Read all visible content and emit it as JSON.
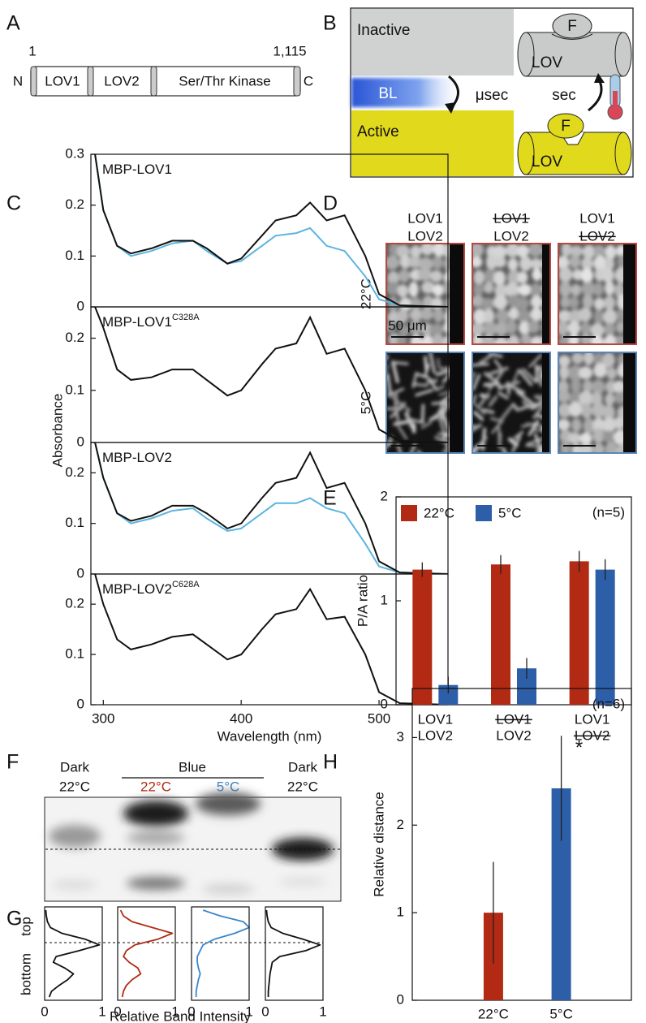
{
  "panel_labels": [
    "A",
    "B",
    "C",
    "D",
    "E",
    "F",
    "G",
    "H"
  ],
  "domains": {
    "n_term": "N",
    "c_term": "C",
    "start": "1",
    "end": "1,115",
    "segments": [
      "LOV1",
      "LOV2",
      "Ser/Thr Kinase"
    ]
  },
  "scheme": {
    "inactive": "Inactive",
    "active": "Active",
    "flavin": [
      "F",
      "F"
    ],
    "domain": [
      "LOV",
      "LOV"
    ],
    "light": "BL",
    "fast": "μsec",
    "slow": "sec"
  },
  "micrographs": {
    "columns": [
      {
        "lines": [
          "LOV1",
          "LOV2"
        ],
        "struck": [
          false,
          false
        ]
      },
      {
        "lines": [
          "LOV1",
          "LOV2"
        ],
        "struck": [
          true,
          false
        ]
      },
      {
        "lines": [
          "LOV1",
          "LOV2"
        ],
        "struck": [
          false,
          true
        ]
      }
    ],
    "rows": [
      "22°C",
      "5°C"
    ],
    "scale_bar": "50 μm"
  },
  "gel": {
    "lanes": [
      {
        "condition": "Dark",
        "temperature": "22°C"
      },
      {
        "temperature": "22°C"
      },
      {
        "temperature": "5°C"
      },
      {
        "condition": "Dark",
        "temperature": "22°C"
      }
    ],
    "group": "Blue"
  },
  "profiles": {
    "top": "top",
    "bottom": "bottom",
    "xlabel": "Relative Band Intensity"
  },
  "chart_data": [
    {
      "type": "line",
      "title": "MBP-LOV1",
      "ylabel": "Absorbance",
      "xlim": [
        291,
        550
      ],
      "ylim": [
        0,
        0.3
      ],
      "yticks": [
        0,
        0.1,
        0.2,
        0.3
      ],
      "x": [
        294,
        300,
        310,
        320,
        335,
        350,
        365,
        375,
        390,
        400,
        415,
        425,
        440,
        450,
        462,
        475,
        490,
        500,
        515,
        550
      ],
      "series": [
        {
          "color": "#5bb4e0",
          "values": [
            0.3,
            0.19,
            0.12,
            0.1,
            0.11,
            0.125,
            0.13,
            0.11,
            0.085,
            0.09,
            0.12,
            0.14,
            0.145,
            0.155,
            0.12,
            0.11,
            0.06,
            0.015,
            0.003,
            0
          ]
        },
        {
          "color": "#111111",
          "values": [
            0.3,
            0.19,
            0.12,
            0.105,
            0.115,
            0.13,
            0.13,
            0.115,
            0.085,
            0.095,
            0.14,
            0.17,
            0.18,
            0.205,
            0.17,
            0.18,
            0.1,
            0.025,
            0.003,
            0
          ]
        }
      ]
    },
    {
      "type": "line",
      "title": "MBP-LOV1",
      "title_superscript": "C328A",
      "xlim": [
        291,
        550
      ],
      "ylim": [
        0,
        0.26
      ],
      "yticks": [
        0,
        0.1,
        0.2
      ],
      "x": [
        294,
        300,
        310,
        320,
        335,
        350,
        365,
        375,
        390,
        400,
        415,
        425,
        440,
        450,
        462,
        475,
        490,
        500,
        515,
        550
      ],
      "series": [
        {
          "color": "#111111",
          "values": [
            0.26,
            0.22,
            0.14,
            0.12,
            0.125,
            0.14,
            0.14,
            0.12,
            0.09,
            0.1,
            0.15,
            0.18,
            0.19,
            0.24,
            0.17,
            0.18,
            0.1,
            0.025,
            0.003,
            0
          ]
        }
      ]
    },
    {
      "type": "line",
      "title": "MBP-LOV2",
      "xlim": [
        291,
        550
      ],
      "ylim": [
        0,
        0.26
      ],
      "yticks": [
        0,
        0.1,
        0.2
      ],
      "x": [
        294,
        300,
        310,
        320,
        335,
        350,
        365,
        375,
        390,
        400,
        415,
        425,
        440,
        450,
        462,
        475,
        490,
        500,
        515,
        550
      ],
      "series": [
        {
          "color": "#5bb4e0",
          "values": [
            0.26,
            0.19,
            0.12,
            0.1,
            0.11,
            0.125,
            0.13,
            0.11,
            0.085,
            0.09,
            0.12,
            0.14,
            0.14,
            0.15,
            0.13,
            0.12,
            0.06,
            0.015,
            0.003,
            0
          ]
        },
        {
          "color": "#111111",
          "values": [
            0.26,
            0.19,
            0.12,
            0.105,
            0.115,
            0.135,
            0.135,
            0.12,
            0.09,
            0.1,
            0.15,
            0.18,
            0.19,
            0.24,
            0.17,
            0.18,
            0.1,
            0.025,
            0.003,
            0
          ]
        }
      ]
    },
    {
      "type": "line",
      "title": "MBP-LOV2",
      "title_superscript": "C628A",
      "xlabel": "Wavelength (nm)",
      "xlim": [
        291,
        550
      ],
      "xticks": [
        300,
        400,
        500
      ],
      "ylim": [
        0,
        0.26
      ],
      "yticks": [
        0,
        0.1,
        0.2
      ],
      "x": [
        294,
        300,
        310,
        320,
        335,
        350,
        365,
        375,
        390,
        400,
        415,
        425,
        440,
        450,
        462,
        475,
        490,
        500,
        515,
        550
      ],
      "series": [
        {
          "color": "#111111",
          "values": [
            0.26,
            0.2,
            0.13,
            0.11,
            0.12,
            0.135,
            0.14,
            0.12,
            0.09,
            0.1,
            0.15,
            0.18,
            0.19,
            0.23,
            0.17,
            0.175,
            0.1,
            0.025,
            0.003,
            0
          ]
        }
      ]
    },
    {
      "type": "bar",
      "ylabel": "P/A ratio",
      "annotation": "(n=5)",
      "legend": "top-left",
      "ylim": [
        0,
        2
      ],
      "yticks": [
        0,
        1,
        2
      ],
      "categories": [
        {
          "lines": [
            "LOV1",
            "LOV2"
          ],
          "struck": [
            false,
            false
          ]
        },
        {
          "lines": [
            "LOV1",
            "LOV2"
          ],
          "struck": [
            true,
            false
          ]
        },
        {
          "lines": [
            "LOV1",
            "LOV2"
          ],
          "struck": [
            false,
            true
          ]
        }
      ],
      "series": [
        {
          "name": "22°C",
          "color": "#b22a14",
          "values": [
            1.3,
            1.35,
            1.38
          ],
          "errors": [
            0.07,
            0.09,
            0.1
          ]
        },
        {
          "name": "5°C",
          "color": "#2d5ea8",
          "values": [
            0.19,
            0.35,
            1.3
          ],
          "errors": [
            0.08,
            0.1,
            0.1
          ]
        }
      ]
    },
    {
      "type": "profile",
      "color": "#111111",
      "xlim": [
        0,
        1
      ],
      "xticks": [
        0,
        1
      ],
      "values": [
        0.02,
        0.03,
        0.05,
        0.1,
        0.3,
        0.7,
        0.95,
        0.6,
        0.2,
        0.15,
        0.35,
        0.5,
        0.4,
        0.25,
        0.12,
        0.08
      ]
    },
    {
      "type": "profile",
      "color": "#b22a14",
      "xlim": [
        0,
        1
      ],
      "xticks": [
        0,
        1
      ],
      "values": [
        0.05,
        0.1,
        0.25,
        0.6,
        0.95,
        0.7,
        0.3,
        0.15,
        0.1,
        0.2,
        0.35,
        0.4,
        0.25,
        0.15,
        0.1,
        0.08
      ]
    },
    {
      "type": "profile",
      "color": "#3a86c8",
      "xlim": [
        0,
        1
      ],
      "xticks": [
        0,
        1
      ],
      "values": [
        0.2,
        0.5,
        0.9,
        1.0,
        0.75,
        0.4,
        0.2,
        0.15,
        0.1,
        0.1,
        0.12,
        0.15,
        0.12,
        0.1,
        0.08,
        0.08
      ]
    },
    {
      "type": "profile",
      "color": "#111111",
      "xlim": [
        0,
        1
      ],
      "xticks": [
        0,
        1
      ],
      "values": [
        0.02,
        0.03,
        0.05,
        0.1,
        0.3,
        0.65,
        0.95,
        0.7,
        0.25,
        0.12,
        0.1,
        0.08,
        0.07,
        0.06,
        0.05,
        0.05
      ]
    },
    {
      "type": "bar",
      "ylabel": "Relative distance",
      "annotation": "(n=6)",
      "significance": "*",
      "ylim": [
        0,
        3.56
      ],
      "yticks": [
        0,
        1,
        2,
        3
      ],
      "categories": [
        "22°C",
        "5°C"
      ],
      "colors": [
        "#b22a14",
        "#2d5ea8"
      ],
      "values": [
        1.0,
        2.42
      ],
      "errors": [
        0.58,
        0.6
      ]
    }
  ]
}
